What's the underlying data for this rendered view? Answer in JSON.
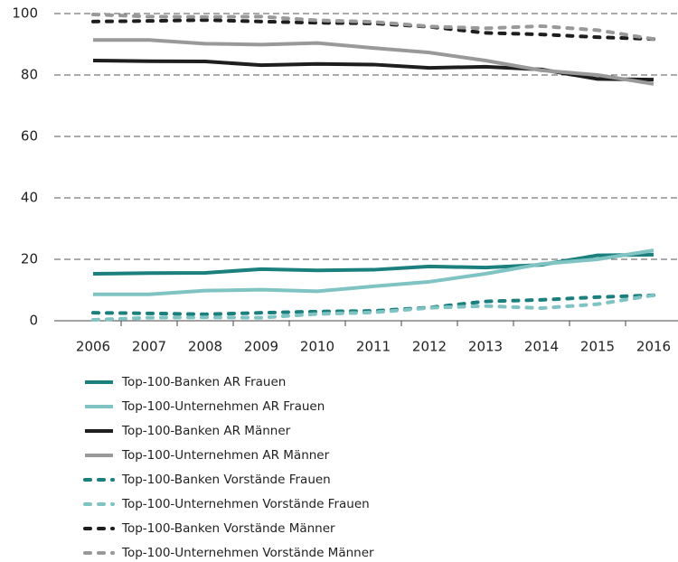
{
  "chart_data": {
    "type": "line",
    "categories": [
      "2006",
      "2007",
      "2008",
      "2009",
      "2010",
      "2011",
      "2012",
      "2013",
      "2014",
      "2015",
      "2016"
    ],
    "ylim": [
      0,
      100
    ],
    "yticks": [
      0,
      20,
      40,
      60,
      80,
      100
    ],
    "grid": true,
    "series": [
      {
        "name": "Top-100-Banken AR Frauen",
        "color": "#1a7f7d",
        "dashed": false,
        "values": [
          15.3,
          15.5,
          15.6,
          16.8,
          16.4,
          16.6,
          17.7,
          17.3,
          18.2,
          21.3,
          21.5
        ]
      },
      {
        "name": "Top-100-Unternehmen AR Frauen",
        "color": "#80c3c3",
        "dashed": false,
        "values": [
          8.6,
          8.6,
          9.8,
          10.1,
          9.6,
          11.2,
          12.7,
          15.3,
          18.5,
          20.0,
          22.9
        ]
      },
      {
        "name": "Top-100-Banken AR Männer",
        "color": "#1e1e1e",
        "dashed": false,
        "values": [
          84.7,
          84.5,
          84.4,
          83.2,
          83.6,
          83.4,
          82.3,
          82.7,
          81.8,
          78.7,
          78.5
        ]
      },
      {
        "name": "Top-100-Unternehmen AR Männer",
        "color": "#999999",
        "dashed": false,
        "values": [
          91.4,
          91.4,
          90.2,
          89.9,
          90.4,
          88.8,
          87.3,
          84.7,
          81.5,
          80.0,
          77.1
        ]
      },
      {
        "name": "Top-100-Banken Vorstände Frauen",
        "color": "#1a7f7d",
        "dashed": true,
        "values": [
          2.6,
          2.4,
          2.1,
          2.6,
          3.0,
          3.2,
          4.3,
          6.3,
          6.8,
          7.7,
          8.3
        ]
      },
      {
        "name": "Top-100-Unternehmen Vorstände Frauen",
        "color": "#80c3c3",
        "dashed": true,
        "values": [
          0.3,
          1.0,
          1.1,
          1.0,
          2.2,
          2.7,
          4.2,
          4.8,
          4.1,
          5.4,
          8.3
        ]
      },
      {
        "name": "Top-100-Banken Vorstände Männer",
        "color": "#1e1e1e",
        "dashed": true,
        "values": [
          97.4,
          97.6,
          97.9,
          97.4,
          97.0,
          96.8,
          95.7,
          93.7,
          93.2,
          92.3,
          91.7
        ]
      },
      {
        "name": "Top-100-Unternehmen Vorstände Männer",
        "color": "#999999",
        "dashed": true,
        "values": [
          99.7,
          99.0,
          98.9,
          99.0,
          97.8,
          97.3,
          95.8,
          95.2,
          95.9,
          94.6,
          91.7
        ]
      }
    ]
  }
}
